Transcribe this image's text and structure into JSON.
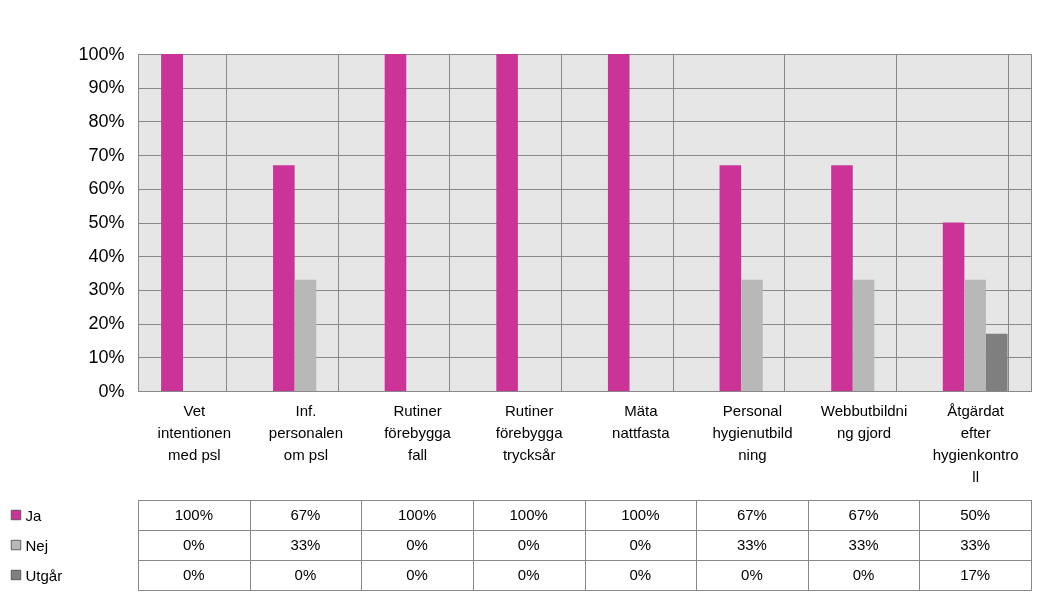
{
  "chart_data": {
    "type": "bar",
    "categories": [
      "Vet intentionen med psl",
      "Inf. personalen om psl",
      "Rutiner förebygga fall",
      "Rutiner förebygga trycksår",
      "Mäta nattfasta",
      "Personal hygienutbildning",
      "Webbutbildning gjord",
      "Åtgärdat efter hygienkontroll"
    ],
    "series": [
      {
        "name": "Ja",
        "color": "#cc3399",
        "values": [
          100,
          67,
          100,
          100,
          100,
          67,
          67,
          50
        ],
        "value_labels": [
          "100%",
          "67%",
          "100%",
          "100%",
          "100%",
          "67%",
          "67%",
          "50%"
        ]
      },
      {
        "name": "Nej",
        "color": "#b8b8b8",
        "values": [
          0,
          33,
          0,
          0,
          0,
          33,
          33,
          33
        ],
        "value_labels": [
          "0%",
          "33%",
          "0%",
          "0%",
          "0%",
          "33%",
          "33%",
          "33%"
        ]
      },
      {
        "name": "Utgår",
        "color": "#7f7f7f",
        "values": [
          0,
          0,
          0,
          0,
          0,
          0,
          0,
          17
        ],
        "value_labels": [
          "0%",
          "0%",
          "0%",
          "0%",
          "0%",
          "0%",
          "0%",
          "17%"
        ]
      }
    ],
    "ylim": [
      0,
      100
    ],
    "yticks": [
      {
        "value": 0,
        "label": "0%"
      },
      {
        "value": 10,
        "label": "10%"
      },
      {
        "value": 20,
        "label": "20%"
      },
      {
        "value": 30,
        "label": "30%"
      },
      {
        "value": 40,
        "label": "40%"
      },
      {
        "value": 50,
        "label": "50%"
      },
      {
        "value": 60,
        "label": "60%"
      },
      {
        "value": 70,
        "label": "70%"
      },
      {
        "value": 80,
        "label": "80%"
      },
      {
        "value": 90,
        "label": "90%"
      },
      {
        "value": 100,
        "label": "100%"
      }
    ],
    "grid": "y",
    "legend": "bottom left"
  }
}
